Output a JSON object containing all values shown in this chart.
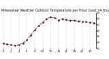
{
  "title": "Milwaukee Weather Outdoor Temperature per Hour (Last 24 Hours)",
  "hours": [
    0,
    1,
    2,
    3,
    4,
    5,
    6,
    7,
    8,
    9,
    10,
    11,
    12,
    13,
    14,
    15,
    16,
    17,
    18,
    19,
    20,
    21,
    22,
    23
  ],
  "temps": [
    18,
    17,
    16,
    15,
    16,
    19,
    24,
    32,
    41,
    48,
    54,
    60,
    63,
    62,
    58,
    60,
    59,
    57,
    57,
    56,
    55,
    55,
    54,
    53
  ],
  "line_color": "#dd0000",
  "marker_color": "#000000",
  "background_color": "#ffffff",
  "grid_color": "#999999",
  "ylim": [
    10,
    70
  ],
  "xlim": [
    -0.5,
    23.5
  ],
  "yticks": [
    10,
    20,
    30,
    40,
    50,
    60,
    70
  ],
  "title_fontsize": 3.5,
  "tick_fontsize": 2.8,
  "line_width": 0.7,
  "marker_size": 1.5
}
